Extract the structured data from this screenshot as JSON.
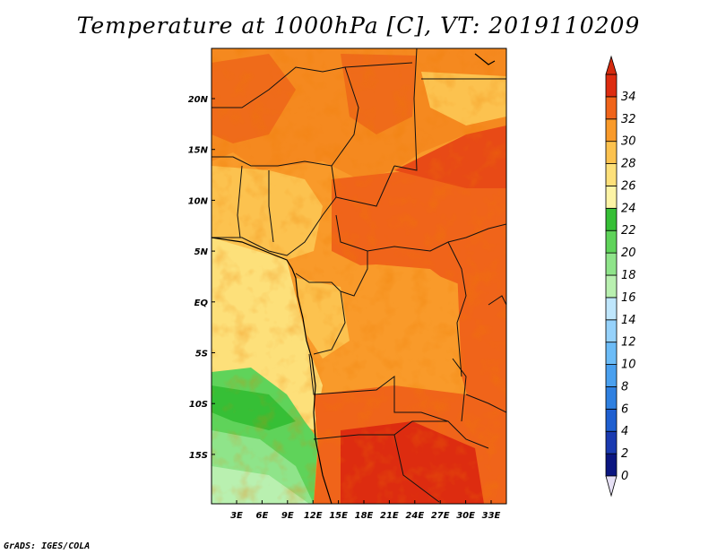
{
  "title": "Temperature at 1000hPa [C], VT: 2019110209",
  "credit": "GrADS: IGES/COLA",
  "map": {
    "lat_labels": [
      "20N",
      "15N",
      "10N",
      "5N",
      "EQ",
      "5S",
      "10S",
      "15S"
    ],
    "lon_labels": [
      "3E",
      "6E",
      "9E",
      "12E",
      "15E",
      "18E",
      "21E",
      "24E",
      "27E",
      "30E",
      "33E"
    ]
  },
  "colorbar": {
    "levels": [
      "0",
      "2",
      "4",
      "6",
      "8",
      "10",
      "12",
      "14",
      "16",
      "18",
      "20",
      "22",
      "24",
      "26",
      "28",
      "30",
      "32",
      "34"
    ],
    "colors": [
      "#0b1680",
      "#1a3ab0",
      "#1f5fd0",
      "#2f80e0",
      "#4aa0ef",
      "#6cbcf7",
      "#96d2fb",
      "#bfe6fc",
      "#b9f0b0",
      "#8fe48a",
      "#5fd35a",
      "#36bf36",
      "#fdf4a6",
      "#fde07a",
      "#fcc24f",
      "#f99a2a",
      "#f0641a",
      "#dd2c10"
    ],
    "under_color": "#e6e0f5",
    "over_color": "#d42a0e"
  }
}
